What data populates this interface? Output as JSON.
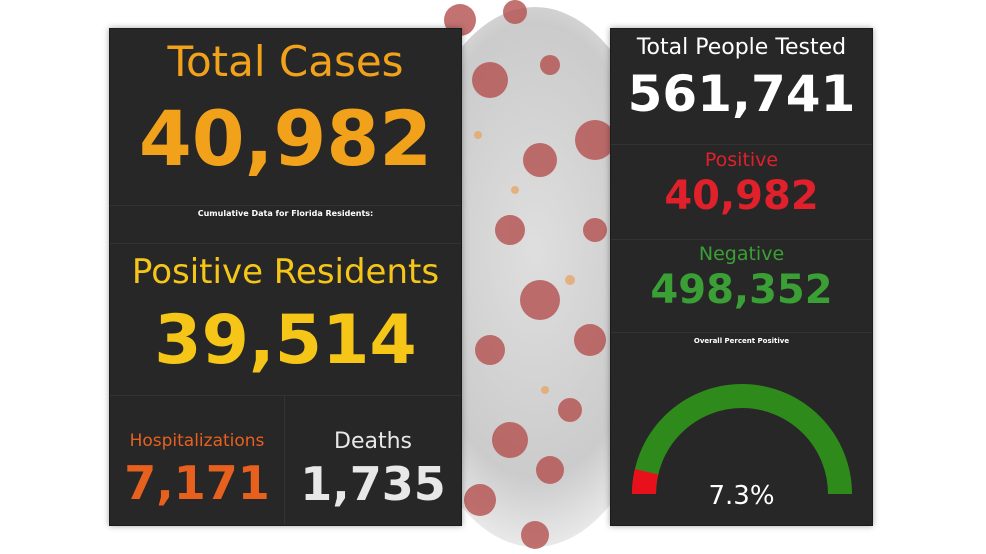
{
  "left": {
    "total_cases_title": "Total Cases",
    "total_cases_value": "40,982",
    "cumulative_note": "Cumulative Data for Florida Residents:",
    "positive_residents_title": "Positive Residents",
    "positive_residents_value": "39,514",
    "hospitalizations_title": "Hospitalizations",
    "hospitalizations_value": "7,171",
    "deaths_title": "Deaths",
    "deaths_value": "1,735"
  },
  "right": {
    "tested_title": "Total People Tested",
    "tested_value": "561,741",
    "positive_title": "Positive",
    "positive_value": "40,982",
    "negative_title": "Negative",
    "negative_value": "498,352",
    "percent_note": "Overall Percent Positive",
    "gauge_value": "7.3%",
    "gauge_fraction": 0.073
  },
  "colors": {
    "panel_bg": "#272727",
    "total_cases": "#f2a21a",
    "positive_residents": "#f5c518",
    "hospitalizations": "#e8601e",
    "deaths": "#e8e8e8",
    "positive": "#e0202a",
    "negative": "#3aa035",
    "gauge_fill": "#e8111b",
    "gauge_track": "#2f8a1c"
  }
}
